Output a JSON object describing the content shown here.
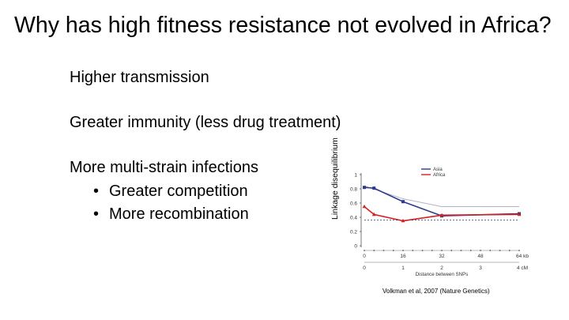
{
  "slide": {
    "title": "Why has high fitness resistance not evolved in Africa?",
    "bullets": [
      "Higher transmission",
      "Greater immunity (less drug treatment)",
      "More multi-strain infections"
    ],
    "sub_bullets": [
      "Greater competition",
      "More recombination"
    ],
    "citation": "Volkman et al, 2007 (Nature Genetics)"
  },
  "chart_data": {
    "type": "line",
    "ylabel": "Linkage disequilibrium",
    "xlabel": "Distance between SNPs",
    "ylim": [
      0,
      1
    ],
    "yticks": [
      "0",
      "0.2",
      "0.4",
      "0.6",
      "0.8",
      "1"
    ],
    "xlim": [
      0,
      64
    ],
    "xticks_top": [
      "0",
      "16",
      "32",
      "48",
      "64 kb"
    ],
    "xticks_bottom": [
      "0",
      "1",
      "2",
      "3",
      "4 cM"
    ],
    "legend": {
      "placement": "top-right"
    },
    "series": [
      {
        "name": "Asia",
        "color": "#2b3a8f",
        "marker": "square",
        "x": [
          0,
          4,
          16,
          32,
          64
        ],
        "y": [
          0.82,
          0.81,
          0.62,
          0.42,
          0.45
        ]
      },
      {
        "name": "Africa",
        "color": "#d42020",
        "marker": "triangle",
        "x": [
          0,
          4,
          16,
          32,
          64
        ],
        "y": [
          0.55,
          0.44,
          0.35,
          0.43,
          0.44
        ]
      }
    ],
    "upper_envelope": {
      "color": "#b3b3c8",
      "x": [
        0,
        16,
        32,
        64
      ],
      "y": [
        0.84,
        0.66,
        0.55,
        0.55
      ]
    },
    "baseline_y": 0.36
  }
}
